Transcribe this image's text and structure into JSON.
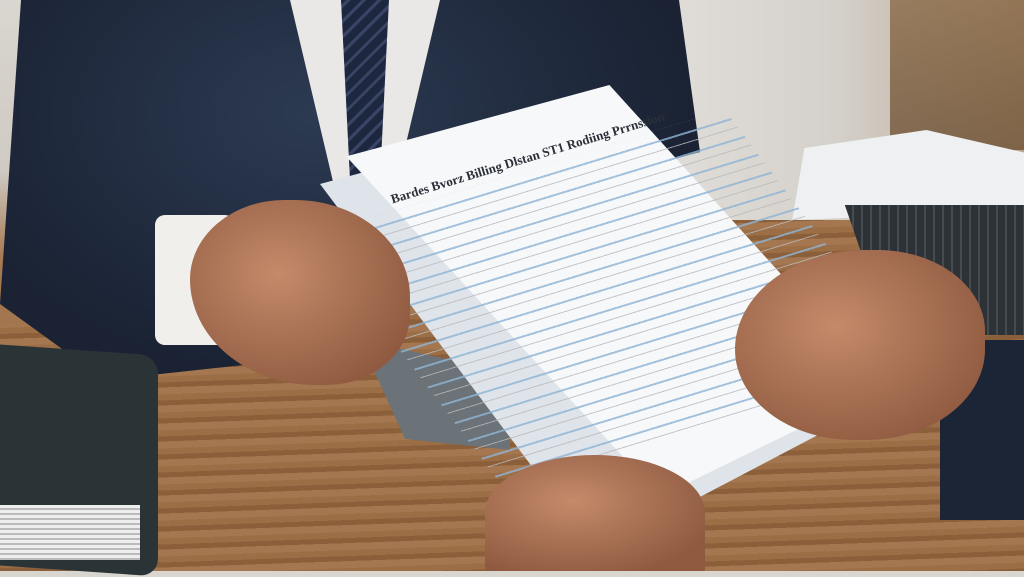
{
  "scene": {
    "description_tag": "photo",
    "document": {
      "title": "Bardes Bvorz Billing Dlstan ST1 Rodiing Prrnssion"
    },
    "colors": {
      "suit": "#1a2233",
      "desk_wood": "#9b6e46",
      "paper": "#f7f8fa",
      "table_highlight": "#8fb4d4"
    }
  }
}
